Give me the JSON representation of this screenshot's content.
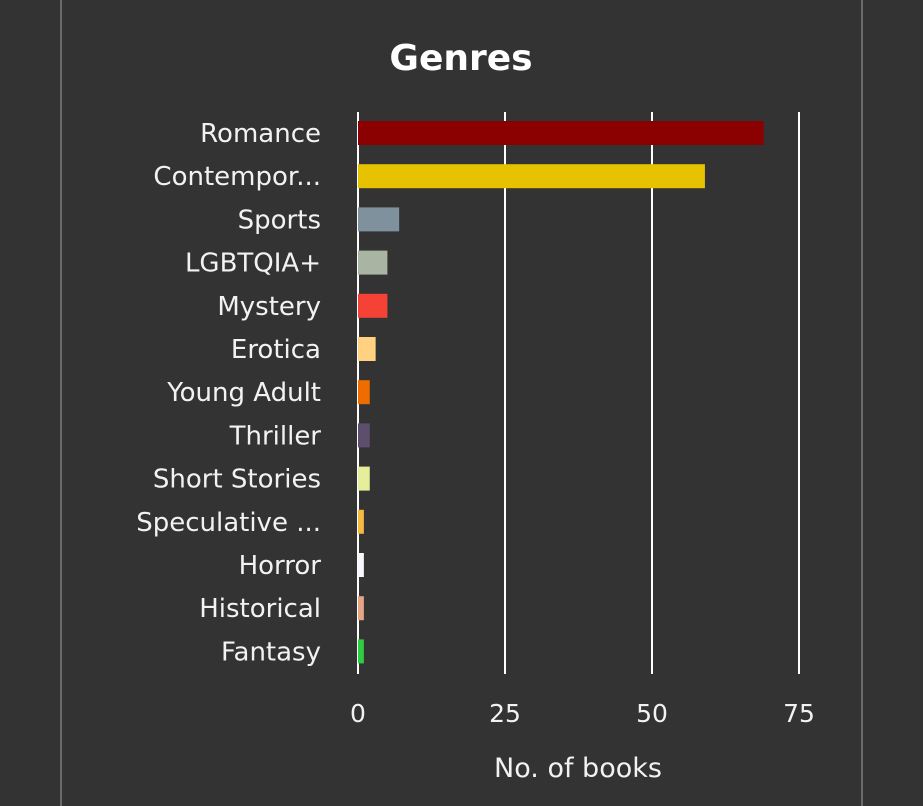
{
  "chart_data": {
    "type": "bar",
    "orientation": "horizontal",
    "title": "Genres",
    "xlabel": "No. of books",
    "ylabel": "",
    "xlim": [
      0,
      75
    ],
    "xticks": [
      0,
      25,
      50,
      75
    ],
    "grid": true,
    "categories": [
      "Romance",
      "Contempor...",
      "Sports",
      "LGBTQIA+",
      "Mystery",
      "Erotica",
      "Young Adult",
      "Thriller",
      "Short Stories",
      "Speculative ...",
      "Horror",
      "Historical",
      "Fantasy"
    ],
    "values": [
      69,
      59,
      7,
      5,
      5,
      3,
      2,
      2,
      2,
      1,
      1,
      1,
      1
    ],
    "colors": [
      "#8b0000",
      "#e6c200",
      "#7e919c",
      "#a9b4a3",
      "#f44336",
      "#ffd180",
      "#ef6c00",
      "#5d4e6d",
      "#e6ee9c",
      "#f4b942",
      "#f5f7fa",
      "#e4a584",
      "#2ecc40"
    ]
  },
  "theme": {
    "background": "#333333",
    "grid_color": "#ffffff",
    "text_color": "#f2f2f2"
  }
}
